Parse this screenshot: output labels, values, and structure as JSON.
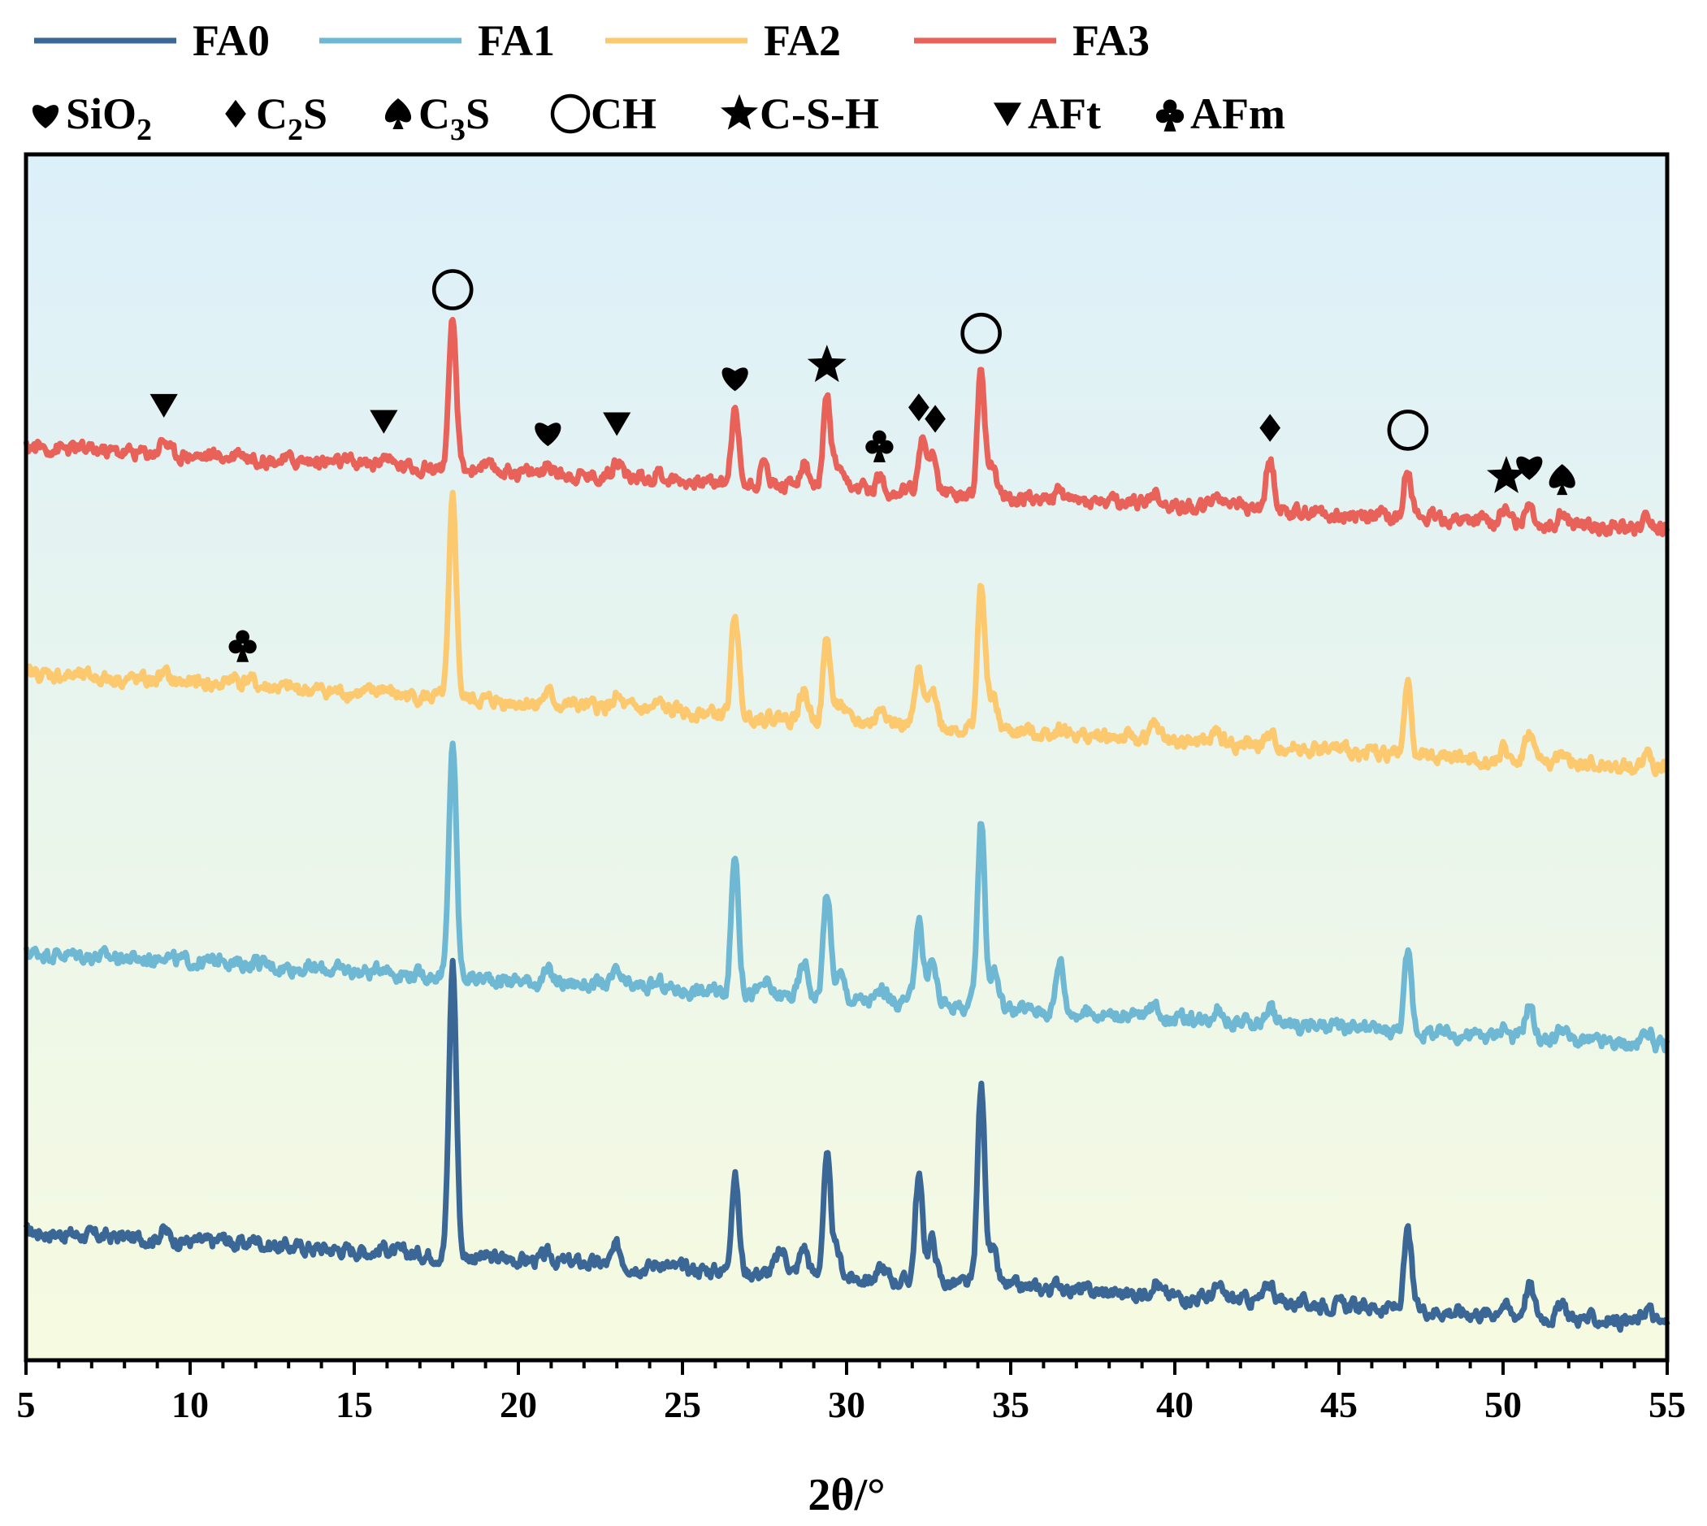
{
  "chart_data": {
    "type": "line",
    "xlabel": "2θ/°",
    "ylabel": "",
    "xlim": [
      5,
      55
    ],
    "xticks": [
      5,
      10,
      15,
      20,
      25,
      30,
      35,
      40,
      45,
      50,
      55
    ],
    "grid": false,
    "legend_position": "top",
    "background_gradient": [
      "#dcf0fa",
      "#f6fae0"
    ],
    "series": [
      {
        "name": "FA0",
        "color": "#3a6796",
        "baseline_start": 1.33,
        "baseline_end": 0.38,
        "peaks": [
          [
            9.2,
            0.1
          ],
          [
            11.0,
            0.05
          ],
          [
            12.0,
            0.06
          ],
          [
            15.9,
            0.05
          ],
          [
            18.0,
            3.05
          ],
          [
            20.9,
            0.06
          ],
          [
            23.0,
            0.18
          ],
          [
            24.3,
            0.06
          ],
          [
            26.6,
            1.0
          ],
          [
            27.9,
            0.12
          ],
          [
            28.1,
            0.18
          ],
          [
            28.7,
            0.3
          ],
          [
            29.4,
            1.2
          ],
          [
            29.7,
            0.25
          ],
          [
            31.1,
            0.12
          ],
          [
            32.2,
            1.1
          ],
          [
            32.6,
            0.45
          ],
          [
            34.1,
            2.05
          ],
          [
            34.45,
            0.35
          ],
          [
            36.5,
            0.07
          ],
          [
            39.4,
            0.16
          ],
          [
            41.3,
            0.11
          ],
          [
            42.9,
            0.2
          ],
          [
            47.1,
            0.8
          ],
          [
            50.0,
            0.12
          ],
          [
            50.8,
            0.32
          ],
          [
            51.8,
            0.12
          ],
          [
            54.4,
            0.16
          ]
        ]
      },
      {
        "name": "FA1",
        "color": "#6fb8d4",
        "baseline_start": 4.23,
        "baseline_end": 3.25,
        "peaks": [
          [
            9.2,
            0.08
          ],
          [
            11.0,
            0.08
          ],
          [
            12.0,
            0.05
          ],
          [
            15.9,
            0.08
          ],
          [
            18.0,
            2.45
          ],
          [
            20.9,
            0.1
          ],
          [
            23.0,
            0.13
          ],
          [
            24.3,
            0.06
          ],
          [
            26.6,
            1.45
          ],
          [
            27.5,
            0.12
          ],
          [
            28.7,
            0.35
          ],
          [
            29.4,
            1.1
          ],
          [
            29.8,
            0.25
          ],
          [
            31.1,
            0.12
          ],
          [
            32.2,
            0.9
          ],
          [
            32.6,
            0.45
          ],
          [
            34.1,
            1.95
          ],
          [
            34.5,
            0.4
          ],
          [
            36.5,
            0.55
          ],
          [
            39.4,
            0.14
          ],
          [
            41.3,
            0.16
          ],
          [
            42.9,
            0.17
          ],
          [
            47.1,
            0.8
          ],
          [
            50.0,
            0.12
          ],
          [
            50.8,
            0.35
          ],
          [
            51.8,
            0.14
          ],
          [
            54.4,
            0.17
          ]
        ]
      },
      {
        "name": "FA2",
        "color": "#fcc96f",
        "baseline_start": 7.12,
        "baseline_end": 6.12,
        "peaks": [
          [
            9.2,
            0.08
          ],
          [
            11.3,
            0.1
          ],
          [
            11.8,
            0.08
          ],
          [
            15.9,
            0.07
          ],
          [
            18.0,
            2.05
          ],
          [
            20.9,
            0.11
          ],
          [
            23.0,
            0.1
          ],
          [
            24.3,
            0.06
          ],
          [
            26.6,
            1.05
          ],
          [
            28.7,
            0.28
          ],
          [
            29.4,
            0.85
          ],
          [
            29.8,
            0.2
          ],
          [
            31.1,
            0.2
          ],
          [
            32.2,
            0.55
          ],
          [
            32.6,
            0.45
          ],
          [
            34.1,
            1.5
          ],
          [
            34.45,
            0.35
          ],
          [
            36.5,
            0.07
          ],
          [
            39.4,
            0.15
          ],
          [
            41.3,
            0.12
          ],
          [
            42.9,
            0.1
          ],
          [
            47.1,
            0.7
          ],
          [
            50.0,
            0.1
          ],
          [
            50.8,
            0.3
          ],
          [
            51.8,
            0.1
          ],
          [
            54.4,
            0.16
          ]
        ]
      },
      {
        "name": "FA3",
        "color": "#e8625a",
        "baseline_start": 9.47,
        "baseline_end": 8.6,
        "peaks": [
          [
            9.2,
            0.15
          ],
          [
            11.5,
            0.08
          ],
          [
            15.9,
            0.1
          ],
          [
            18.0,
            1.5
          ],
          [
            18.9,
            0.05
          ],
          [
            20.9,
            0.08
          ],
          [
            23.0,
            0.2
          ],
          [
            24.3,
            0.06
          ],
          [
            26.6,
            0.75
          ],
          [
            27.5,
            0.2
          ],
          [
            28.7,
            0.25
          ],
          [
            29.4,
            0.9
          ],
          [
            29.7,
            0.2
          ],
          [
            31.0,
            0.12
          ],
          [
            32.3,
            0.5
          ],
          [
            32.6,
            0.35
          ],
          [
            34.1,
            1.32
          ],
          [
            34.45,
            0.3
          ],
          [
            36.5,
            0.08
          ],
          [
            39.4,
            0.12
          ],
          [
            41.3,
            0.15
          ],
          [
            41.8,
            0.1
          ],
          [
            42.9,
            0.5
          ],
          [
            47.1,
            0.55
          ],
          [
            50.0,
            0.12
          ],
          [
            50.8,
            0.25
          ],
          [
            51.8,
            0.12
          ],
          [
            54.4,
            0.1
          ]
        ]
      }
    ],
    "phase_legend": [
      {
        "symbol": "heart",
        "label": "SiO",
        "sub": "2",
        "suffix": ""
      },
      {
        "symbol": "diamond",
        "label": "C",
        "sub": "2",
        "suffix": "S"
      },
      {
        "symbol": "spade",
        "label": "C",
        "sub": "3",
        "suffix": "S"
      },
      {
        "symbol": "circle",
        "label": "CH",
        "sub": "",
        "suffix": ""
      },
      {
        "symbol": "star",
        "label": "C-S-H",
        "sub": "",
        "suffix": ""
      },
      {
        "symbol": "triangle-down",
        "label": "AFt",
        "sub": "",
        "suffix": ""
      },
      {
        "symbol": "club",
        "label": "AFm",
        "sub": "",
        "suffix": ""
      }
    ],
    "annotations": [
      {
        "symbol": "triangle-down",
        "x": 9.2,
        "series": "FA3"
      },
      {
        "symbol": "triangle-down",
        "x": 15.9,
        "series": "FA3"
      },
      {
        "symbol": "circle",
        "x": 18.0,
        "series": "FA3"
      },
      {
        "symbol": "heart",
        "x": 20.9,
        "series": "FA3"
      },
      {
        "symbol": "triangle-down",
        "x": 23.0,
        "series": "FA3"
      },
      {
        "symbol": "heart",
        "x": 26.6,
        "series": "FA3"
      },
      {
        "symbol": "star",
        "x": 29.4,
        "series": "FA3"
      },
      {
        "symbol": "club",
        "x": 31.0,
        "series": "FA3"
      },
      {
        "symbol": "diamond",
        "x": 32.2,
        "series": "FA3"
      },
      {
        "symbol": "diamond",
        "x": 32.7,
        "series": "FA3"
      },
      {
        "symbol": "circle",
        "x": 34.1,
        "series": "FA3"
      },
      {
        "symbol": "diamond",
        "x": 42.9,
        "series": "FA3"
      },
      {
        "symbol": "circle",
        "x": 47.1,
        "series": "FA3"
      },
      {
        "symbol": "star",
        "x": 50.1,
        "series": "FA3"
      },
      {
        "symbol": "heart",
        "x": 50.8,
        "series": "FA3"
      },
      {
        "symbol": "spade",
        "x": 51.8,
        "series": "FA3"
      },
      {
        "symbol": "club",
        "x": 11.6,
        "series": "FA2"
      }
    ]
  }
}
